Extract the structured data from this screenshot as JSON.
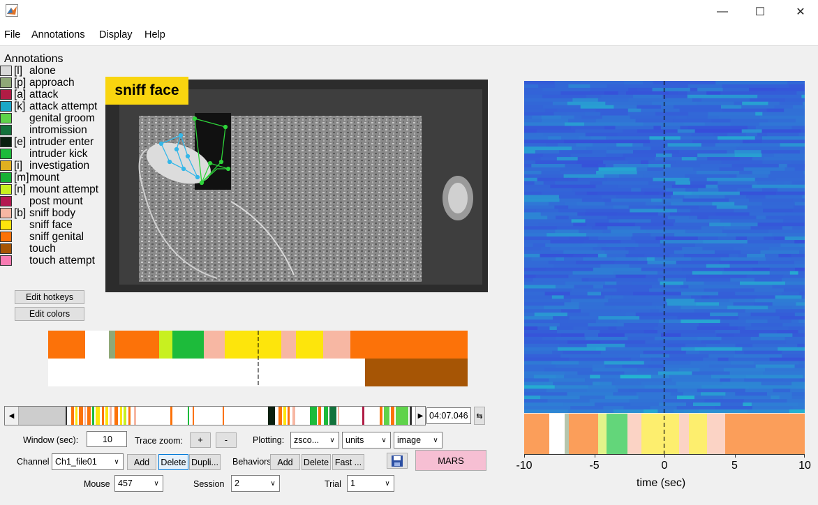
{
  "window": {
    "title": ""
  },
  "menu": {
    "file": "File",
    "annotations": "Annotations",
    "display": "Display",
    "help": "Help"
  },
  "legend": {
    "title": "Annotations",
    "items": [
      {
        "hotkey": "[l]",
        "label": "alone",
        "color": "#d9d9d9"
      },
      {
        "hotkey": "[p]",
        "label": "approach",
        "color": "#8fa878"
      },
      {
        "hotkey": "[a]",
        "label": "attack",
        "color": "#b01c45"
      },
      {
        "hotkey": "[k]",
        "label": "attack attempt",
        "color": "#1ba7c7"
      },
      {
        "hotkey": "",
        "label": "genital groom",
        "color": "#5fd34a"
      },
      {
        "hotkey": "",
        "label": "intromission",
        "color": "#13723b"
      },
      {
        "hotkey": "[e]",
        "label": "intruder enter",
        "color": "#0a2010"
      },
      {
        "hotkey": "",
        "label": "intruder kick",
        "color": "#1dbb3b"
      },
      {
        "hotkey": "[i]",
        "label": "investigation",
        "color": "#e0b020"
      },
      {
        "hotkey": "[m]",
        "label": "mount",
        "color": "#18b035"
      },
      {
        "hotkey": "[n]",
        "label": "mount attempt",
        "color": "#c8f020"
      },
      {
        "hotkey": "",
        "label": "post mount",
        "color": "#b31850"
      },
      {
        "hotkey": "[b]",
        "label": "sniff body",
        "color": "#f7b7a3"
      },
      {
        "hotkey": "",
        "label": "sniff face",
        "color": "#fde50c"
      },
      {
        "hotkey": "",
        "label": "sniff genital",
        "color": "#fc7209"
      },
      {
        "hotkey": "",
        "label": "touch",
        "color": "#a65505"
      },
      {
        "hotkey": "",
        "label": "touch attempt",
        "color": "#f77bb2"
      }
    ]
  },
  "buttons": {
    "edit_hotkeys": "Edit hotkeys",
    "edit_colors": "Edit colors"
  },
  "video": {
    "current_behavior": "sniff face"
  },
  "timeline": {
    "time": "04:07.046"
  },
  "controls": {
    "window_label": "Window (sec):",
    "window_value": "10",
    "trace_zoom_label": "Trace zoom:",
    "zoom_in": "+",
    "zoom_out": "-",
    "plotting_label": "Plotting:",
    "plotting_value": "zsco...",
    "units_value": "units",
    "image_value": "image",
    "channel_label": "Channel",
    "channel_value": "Ch1_file01",
    "channel_add": "Add",
    "channel_delete": "Delete",
    "channel_duplicate": "Dupli...",
    "behaviors_label": "Behaviors",
    "behaviors_add": "Add",
    "behaviors_delete": "Delete",
    "behaviors_fast": "Fast ...",
    "mars": "MARS",
    "mouse_label": "Mouse",
    "mouse_value": "457",
    "session_label": "Session",
    "session_value": "2",
    "trial_label": "Trial",
    "trial_value": "1"
  },
  "chart_data": {
    "type": "heatmap",
    "xlabel": "time (sec)",
    "xlim": [
      -10,
      10
    ],
    "xticks": [
      "-10",
      "-5",
      "0",
      "5",
      "10"
    ],
    "colormap": "parula",
    "marker_at": 0
  },
  "ethogram_top": [
    {
      "color": "#fc7209",
      "frac": 0.088
    },
    {
      "color": "#ffffff",
      "frac": 0.057
    },
    {
      "color": "#8fa878",
      "frac": 0.015
    },
    {
      "color": "#fc7209",
      "frac": 0.104
    },
    {
      "color": "#c8f020",
      "frac": 0.032
    },
    {
      "color": "#1dbb3b",
      "frac": 0.075
    },
    {
      "color": "#f7b7a3",
      "frac": 0.05
    },
    {
      "color": "#fde50c",
      "frac": 0.135
    },
    {
      "color": "#f7b7a3",
      "frac": 0.035
    },
    {
      "color": "#fde50c",
      "frac": 0.065
    },
    {
      "color": "#f7b7a3",
      "frac": 0.065
    },
    {
      "color": "#fc7209",
      "frac": 0.279
    }
  ],
  "ethogram_bottom": [
    {
      "color": "#ffffff",
      "frac": 0.755
    },
    {
      "color": "#a65505",
      "frac": 0.245
    }
  ],
  "heatmap_etho": [
    {
      "color": "#fb9e5a",
      "frac": 0.09
    },
    {
      "color": "#ffffff",
      "frac": 0.055
    },
    {
      "color": "#b6c6ad",
      "frac": 0.015
    },
    {
      "color": "#fb9e5a",
      "frac": 0.105
    },
    {
      "color": "#e2f38a",
      "frac": 0.03
    },
    {
      "color": "#63d67a",
      "frac": 0.075
    },
    {
      "color": "#fbd3c5",
      "frac": 0.05
    },
    {
      "color": "#fdee6e",
      "frac": 0.135
    },
    {
      "color": "#fbd3c5",
      "frac": 0.035
    },
    {
      "color": "#fdee6e",
      "frac": 0.065
    },
    {
      "color": "#fbd3c5",
      "frac": 0.065
    },
    {
      "color": "#fb9e5a",
      "frac": 0.28
    }
  ]
}
